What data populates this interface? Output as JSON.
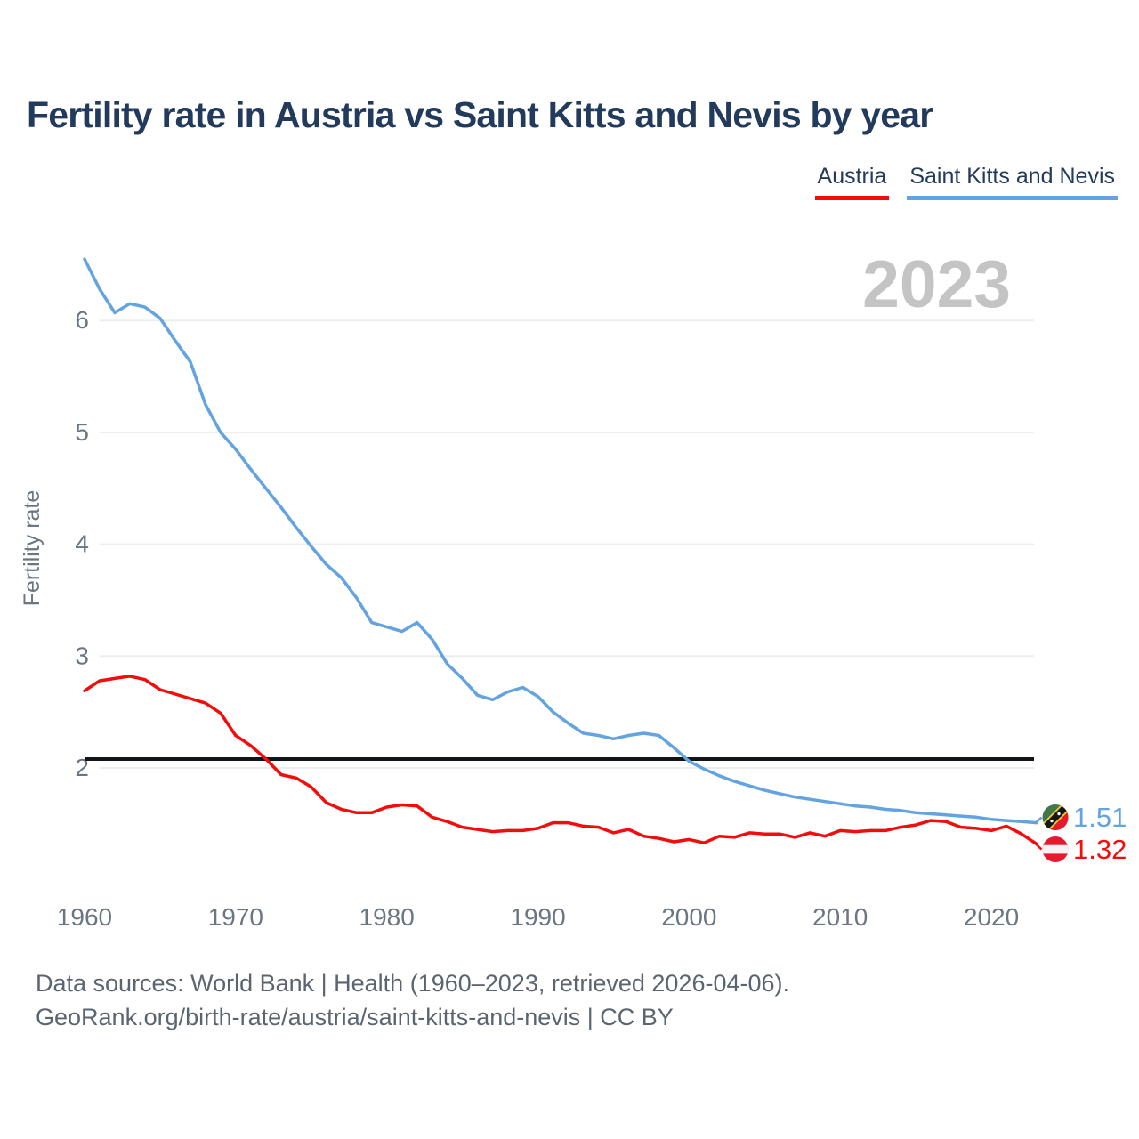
{
  "page": {
    "title": "Fertility rate in Austria vs Saint Kitts and Nevis by year"
  },
  "legend": {
    "items": [
      {
        "label": "Austria",
        "color": "#f20d0d"
      },
      {
        "label": "Saint Kitts and Nevis",
        "color": "#63a3e0"
      }
    ]
  },
  "footer": {
    "line1": "Data sources: World Bank | Health (1960–2023, retrieved 2026-04-06).",
    "line2": "GeoRank.org/birth-rate/austria/saint-kitts-and-nevis | CC BY"
  },
  "chart_data": {
    "type": "line",
    "title": "Fertility rate in Austria vs Saint Kitts and Nevis by year",
    "xlabel": "",
    "ylabel": "Fertility rate",
    "watermark": "2023",
    "grid": true,
    "legend_position": "top-right",
    "x_start": 1960,
    "x_end": 2023,
    "x_ticks": [
      1960,
      1970,
      1980,
      1990,
      2000,
      2010,
      2020
    ],
    "y_ticks": [
      2,
      3,
      4,
      5,
      6
    ],
    "ylim": [
      1.2,
      6.6
    ],
    "reference_line": {
      "name": "replacement-rate",
      "value": 2.08,
      "color": "#111418"
    },
    "series": [
      {
        "name": "Austria",
        "color": "#f20d0d",
        "end_label": "1.32",
        "flag_icon": "austria-flag",
        "values": [
          2.69,
          2.78,
          2.8,
          2.82,
          2.79,
          2.7,
          2.66,
          2.62,
          2.58,
          2.49,
          2.29,
          2.2,
          2.08,
          1.94,
          1.91,
          1.83,
          1.69,
          1.63,
          1.6,
          1.6,
          1.65,
          1.67,
          1.66,
          1.56,
          1.52,
          1.47,
          1.45,
          1.43,
          1.44,
          1.44,
          1.46,
          1.51,
          1.51,
          1.48,
          1.47,
          1.42,
          1.45,
          1.39,
          1.37,
          1.34,
          1.36,
          1.33,
          1.39,
          1.38,
          1.42,
          1.41,
          1.41,
          1.38,
          1.42,
          1.39,
          1.44,
          1.43,
          1.44,
          1.44,
          1.47,
          1.49,
          1.53,
          1.52,
          1.47,
          1.46,
          1.44,
          1.48,
          1.41,
          1.32
        ]
      },
      {
        "name": "Saint Kitts and Nevis",
        "color": "#63a3e0",
        "end_label": "1.51",
        "flag_icon": "saint-kitts-and-nevis-flag",
        "values": [
          6.55,
          6.28,
          6.07,
          6.15,
          6.12,
          6.02,
          5.82,
          5.63,
          5.25,
          5.0,
          4.85,
          4.67,
          4.5,
          4.33,
          4.15,
          3.98,
          3.82,
          3.7,
          3.52,
          3.3,
          3.26,
          3.22,
          3.3,
          3.15,
          2.93,
          2.8,
          2.65,
          2.61,
          2.68,
          2.72,
          2.64,
          2.5,
          2.4,
          2.31,
          2.29,
          2.26,
          2.29,
          2.31,
          2.29,
          2.18,
          2.06,
          1.99,
          1.93,
          1.88,
          1.84,
          1.8,
          1.77,
          1.74,
          1.72,
          1.7,
          1.68,
          1.66,
          1.65,
          1.63,
          1.62,
          1.6,
          1.59,
          1.58,
          1.57,
          1.56,
          1.54,
          1.53,
          1.52,
          1.51
        ]
      }
    ],
    "colors": {
      "title": "#223a5c",
      "axis_text": "#6b7683",
      "gridline": "#ededed",
      "watermark": "#c4c4c4",
      "footer_text": "#5b6570"
    }
  }
}
